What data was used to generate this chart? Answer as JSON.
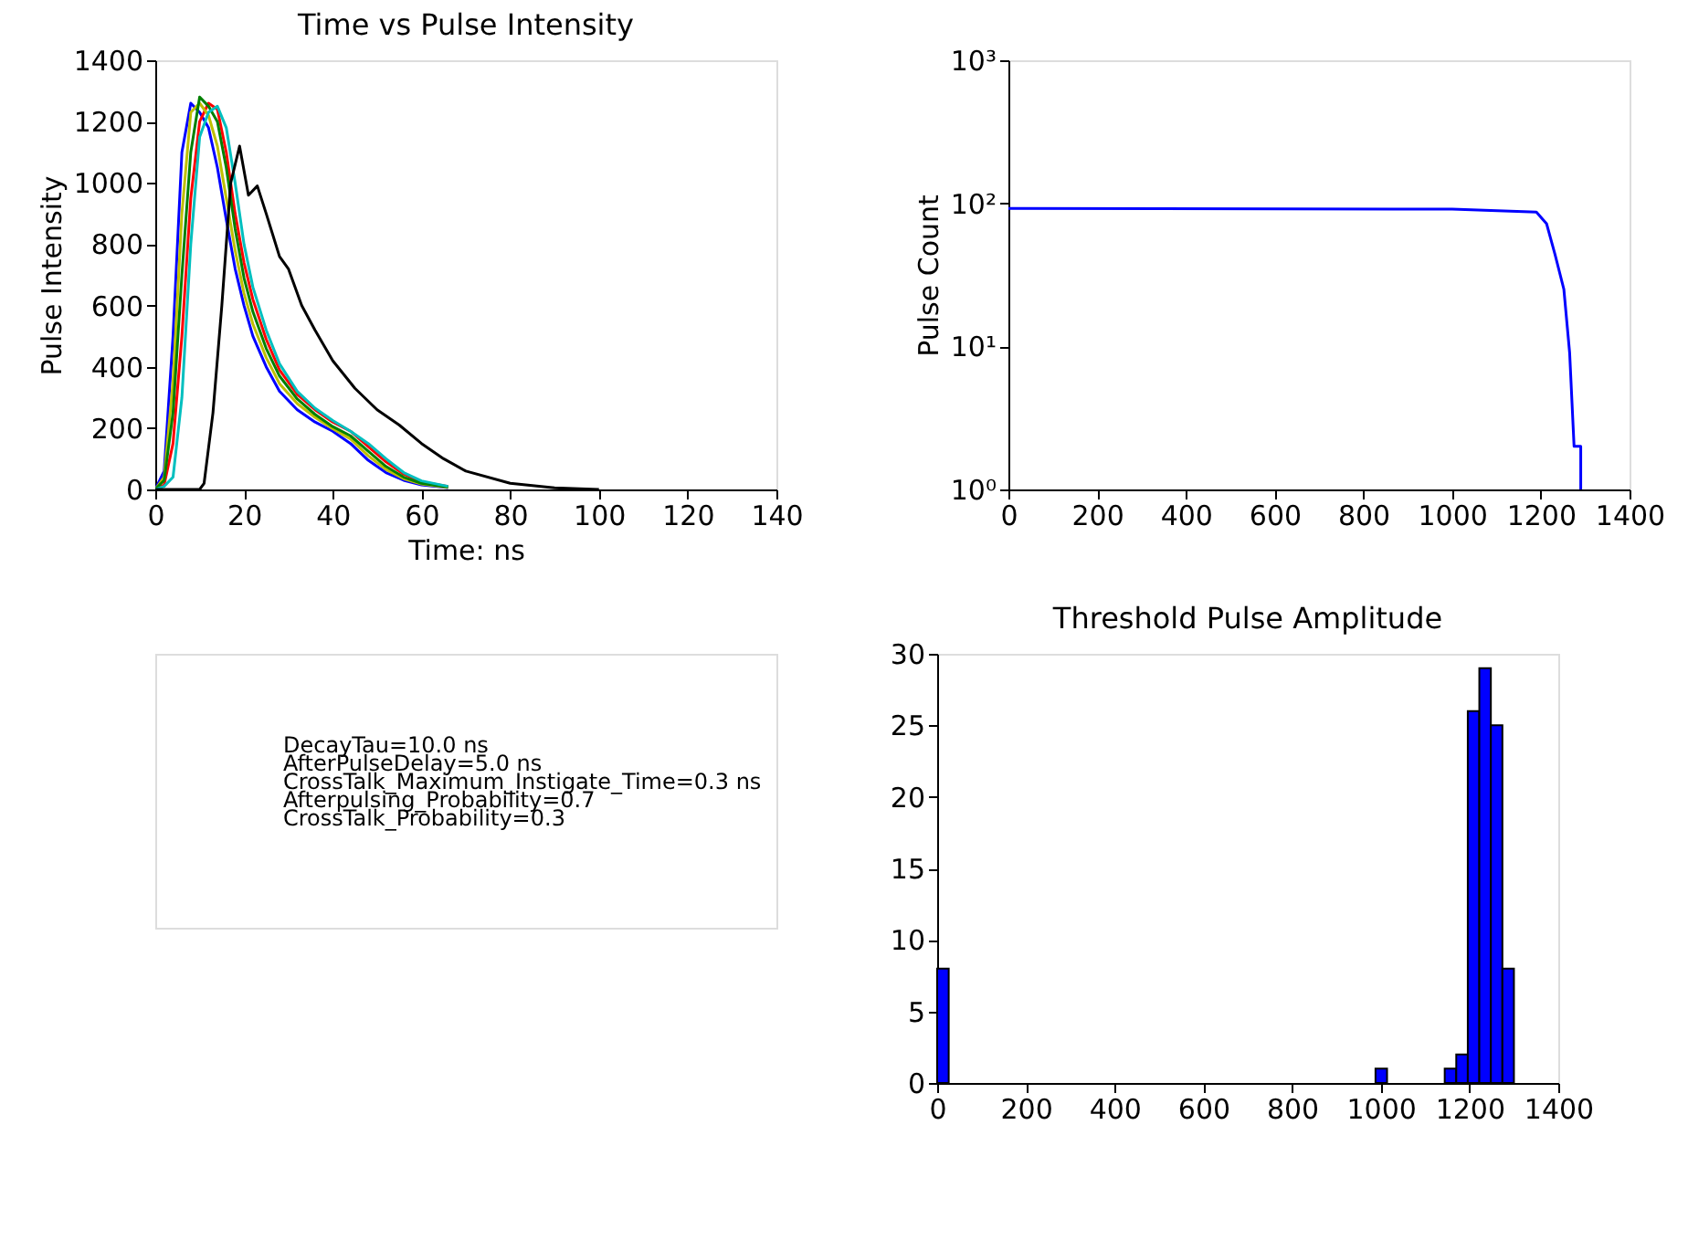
{
  "chart_data": [
    {
      "type": "line",
      "title": "Time vs Pulse Intensity",
      "xlabel": "Time: ns",
      "ylabel": "Pulse Intensity",
      "xlim": [
        0,
        140
      ],
      "xticks": [
        0,
        20,
        40,
        60,
        80,
        100,
        120,
        140
      ],
      "ylim": [
        0,
        1400
      ],
      "yticks": [
        0,
        200,
        400,
        600,
        800,
        1000,
        1200,
        1400
      ],
      "grid": false,
      "x": [
        0,
        2,
        4,
        6,
        8,
        10,
        12,
        14,
        16,
        18,
        20,
        22,
        25,
        28,
        32,
        36,
        40,
        44,
        48,
        52,
        56,
        60,
        66
      ],
      "series": [
        {
          "color": "#0000ff",
          "values": [
            0,
            60,
            500,
            1100,
            1260,
            1230,
            1180,
            1050,
            880,
            720,
            600,
            500,
            400,
            320,
            260,
            220,
            190,
            150,
            95,
            55,
            30,
            15,
            6
          ]
        },
        {
          "color": "#ff0000",
          "values": [
            0,
            15,
            150,
            500,
            950,
            1200,
            1260,
            1240,
            1100,
            900,
            740,
            620,
            490,
            390,
            310,
            260,
            220,
            190,
            140,
            90,
            50,
            25,
            10
          ]
        },
        {
          "color": "#bfbf00",
          "values": [
            0,
            40,
            350,
            900,
            1230,
            1260,
            1220,
            1120,
            950,
            780,
            640,
            540,
            430,
            345,
            280,
            235,
            198,
            165,
            110,
            65,
            35,
            18,
            7
          ]
        },
        {
          "color": "#008000",
          "values": [
            0,
            30,
            250,
            700,
            1100,
            1280,
            1250,
            1200,
            1050,
            850,
            690,
            580,
            460,
            370,
            295,
            245,
            205,
            175,
            125,
            75,
            40,
            20,
            8
          ]
        },
        {
          "color": "#00bfbf",
          "values": [
            0,
            10,
            40,
            300,
            800,
            1150,
            1230,
            1250,
            1180,
            1000,
            800,
            660,
            520,
            410,
            320,
            265,
            225,
            190,
            150,
            100,
            55,
            28,
            10
          ]
        },
        {
          "color": "#000000",
          "x": [
            0,
            10,
            11,
            13,
            15,
            17,
            19,
            21,
            23,
            25,
            28,
            30,
            33,
            36,
            40,
            45,
            50,
            55,
            60,
            65,
            70,
            80,
            90,
            100
          ],
          "values": [
            0,
            0,
            20,
            250,
            600,
            1000,
            1120,
            960,
            990,
            900,
            760,
            720,
            600,
            520,
            420,
            330,
            260,
            210,
            150,
            100,
            60,
            20,
            5,
            0
          ]
        }
      ]
    },
    {
      "type": "line",
      "ylabel": "Pulse Count",
      "log": "y",
      "xlim": [
        0,
        1400
      ],
      "xticks": [
        0,
        200,
        400,
        600,
        800,
        1000,
        1200,
        1400
      ],
      "ylim": [
        1,
        1000
      ],
      "yticks": [
        {
          "value": 1,
          "label": "10⁰"
        },
        {
          "value": 10,
          "label": "10¹"
        },
        {
          "value": 100,
          "label": "10²"
        },
        {
          "value": 1000,
          "label": "10³"
        }
      ],
      "grid": false,
      "series": [
        {
          "color": "#0000ff",
          "x": [
            0,
            1000,
            1190,
            1213,
            1232,
            1252,
            1265,
            1275,
            1290,
            1290
          ],
          "values": [
            92,
            91,
            87,
            72,
            44,
            25,
            9,
            2,
            2,
            1
          ]
        }
      ]
    },
    {
      "type": "other",
      "annotations": [
        "DecayTau=10.0 ns",
        "AfterPulseDelay=5.0 ns",
        "CrossTalk_Maximum_Instigate_Time=0.3 ns",
        "Afterpulsing_Probability=0.7",
        "CrossTalk_Probability=0.3"
      ]
    },
    {
      "type": "histogram",
      "title": "Threshold Pulse Amplitude",
      "xlim": [
        0,
        1400
      ],
      "xticks": [
        0,
        200,
        400,
        600,
        800,
        1000,
        1200,
        1400
      ],
      "ylim": [
        0,
        30
      ],
      "yticks": [
        0,
        5,
        10,
        15,
        20,
        25,
        30
      ],
      "grid": false,
      "color": "#0000ff",
      "bins": [
        0,
        26,
        52,
        78,
        104,
        130,
        156,
        182,
        208,
        234,
        260,
        286,
        312,
        338,
        364,
        390,
        416,
        442,
        468,
        494,
        520,
        546,
        572,
        598,
        624,
        650,
        676,
        702,
        728,
        754,
        780,
        806,
        832,
        858,
        884,
        910,
        936,
        962,
        988,
        1014,
        1040,
        1066,
        1092,
        1118,
        1144,
        1170,
        1196,
        1222,
        1248,
        1274,
        1300
      ],
      "values": [
        8,
        0,
        0,
        0,
        0,
        0,
        0,
        0,
        0,
        0,
        0,
        0,
        0,
        0,
        0,
        0,
        0,
        0,
        0,
        0,
        0,
        0,
        0,
        0,
        0,
        0,
        0,
        0,
        0,
        0,
        0,
        0,
        0,
        0,
        0,
        0,
        0,
        0,
        1,
        0,
        0,
        0,
        0,
        0,
        1,
        2,
        26,
        29,
        25,
        8
      ]
    }
  ]
}
